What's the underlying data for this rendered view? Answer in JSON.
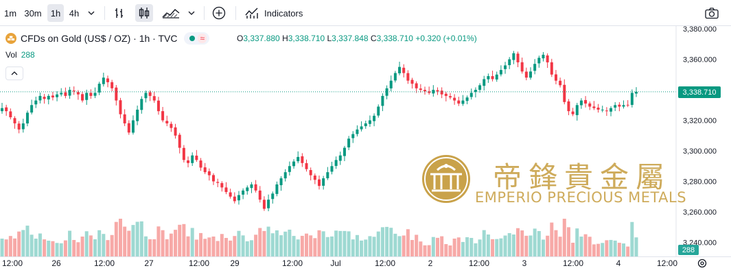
{
  "toolbar": {
    "intervals": [
      "1m",
      "30m",
      "1h",
      "4h"
    ],
    "active_interval": "1h",
    "indicators_label": "Indicators"
  },
  "legend": {
    "symbol": "CFDs on Gold (US$ / OZ) · 1h · TVC",
    "o_key": "O",
    "o_val": "3,337.880",
    "h_key": "H",
    "h_val": "3,338.710",
    "l_key": "L",
    "l_val": "3,337.848",
    "c_key": "C",
    "c_val": "3,338.710",
    "change": "+0.320 (+0.01%)",
    "approx": "≈",
    "vol_label": "Vol",
    "vol_value": "288"
  },
  "price_axis": {
    "ticks": [
      "3,380.000",
      "3,360.000",
      "3,340.000",
      "3,320.000",
      "3,300.000",
      "3,280.000",
      "3,260.000",
      "3,240.000"
    ],
    "tick_values": [
      3380,
      3360,
      3340,
      3320,
      3300,
      3280,
      3260,
      3240
    ],
    "current_price": "3,338.710",
    "current_volume": "288"
  },
  "time_axis": {
    "labels": [
      "12:00",
      "26",
      "12:00",
      "27",
      "12:00",
      "29",
      "12:00",
      "Jul",
      "12:00",
      "2",
      "12:00",
      "3",
      "12:00",
      "4",
      "12:00"
    ]
  },
  "watermark": {
    "chinese": "帝鋒貴金屬",
    "english": "EMPERIO PRECIOUS METALS"
  },
  "colors": {
    "up": "#089981",
    "down": "#f23645",
    "vol_up": "#9ed9d2",
    "vol_down": "#f7a9a7",
    "gold": "#c9a24a"
  },
  "chart_data": {
    "type": "candlestick",
    "price_range": [
      3240,
      3385
    ],
    "close_path": [
      3328,
      3326,
      3322,
      3318,
      3314,
      3318,
      3325,
      3330,
      3333,
      3336,
      3334,
      3336,
      3335,
      3337,
      3338,
      3336,
      3340,
      3339,
      3337,
      3333,
      3338,
      3336,
      3338,
      3344,
      3348,
      3345,
      3341,
      3333,
      3324,
      3318,
      3312,
      3320,
      3327,
      3334,
      3338,
      3336,
      3333,
      3326,
      3320,
      3318,
      3315,
      3310,
      3302,
      3294,
      3292,
      3297,
      3294,
      3289,
      3286,
      3284,
      3280,
      3279,
      3276,
      3273,
      3270,
      3267,
      3271,
      3274,
      3276,
      3278,
      3274,
      3268,
      3262,
      3268,
      3272,
      3278,
      3282,
      3286,
      3290,
      3293,
      3296,
      3292,
      3288,
      3284,
      3281,
      3277,
      3282,
      3286,
      3290,
      3294,
      3297,
      3302,
      3308,
      3311,
      3314,
      3316,
      3318,
      3320,
      3323,
      3329,
      3336,
      3341,
      3346,
      3351,
      3355,
      3351,
      3346,
      3344,
      3341,
      3340,
      3339,
      3338,
      3340,
      3339,
      3337,
      3336,
      3335,
      3333,
      3331,
      3333,
      3335,
      3338,
      3340,
      3343,
      3347,
      3349,
      3347,
      3350,
      3353,
      3356,
      3360,
      3364,
      3358,
      3352,
      3348,
      3352,
      3357,
      3361,
      3363,
      3358,
      3350,
      3346,
      3343,
      3332,
      3326,
      3324,
      3330,
      3333,
      3331,
      3329,
      3328,
      3327,
      3327,
      3326,
      3328,
      3330,
      3329,
      3330,
      3330,
      3338,
      3338.71
    ],
    "volume_range": [
      0,
      2000
    ]
  }
}
